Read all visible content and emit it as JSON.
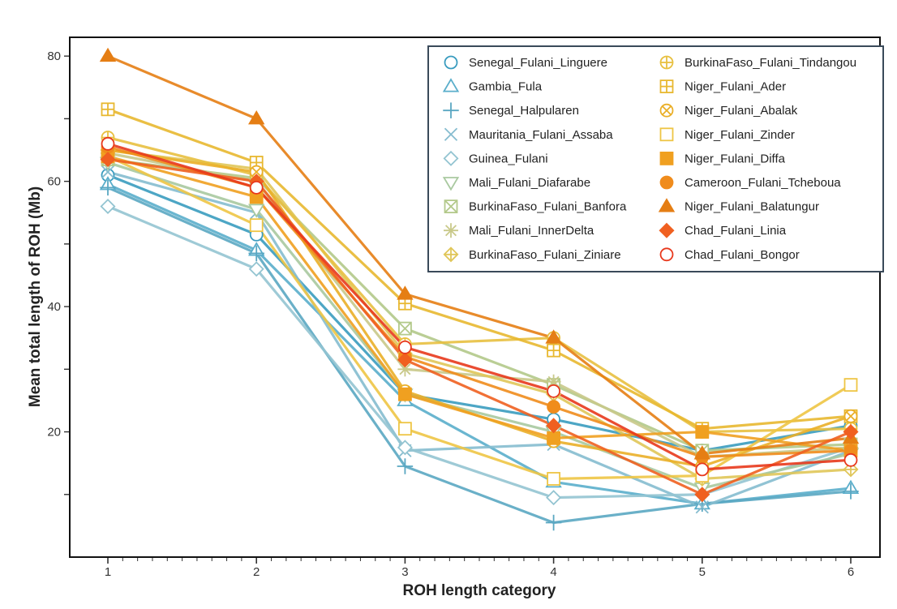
{
  "chart_data": {
    "type": "line",
    "title": "",
    "xlabel": "ROH length category",
    "ylabel": "Mean total length of ROH (Mb)",
    "x": [
      1,
      2,
      3,
      4,
      5,
      6
    ],
    "x_tick_labels": [
      "1",
      "2",
      "3",
      "4",
      "5",
      "6"
    ],
    "xlim": [
      1,
      6
    ],
    "ylim": [
      0,
      83
    ],
    "y_ticks": [
      20,
      40,
      60,
      80
    ],
    "y_tick_labels": [
      "20",
      "40",
      "60",
      "80"
    ],
    "grid": false,
    "legend_position": "top-right",
    "series": [
      {
        "name": "Senegal_Fulani_Linguere",
        "marker": "circle",
        "color": "#3a9cbf",
        "values": [
          61,
          51.5,
          26,
          22,
          17,
          21
        ]
      },
      {
        "name": "Gambia_Fula",
        "marker": "triangle-up-open",
        "color": "#5aaecb",
        "values": [
          59.5,
          49,
          25,
          12,
          8.5,
          11
        ]
      },
      {
        "name": "Senegal_Halpularen",
        "marker": "plus",
        "color": "#5aa7c2",
        "values": [
          59,
          48.5,
          14.5,
          5.5,
          8.5,
          10.5
        ]
      },
      {
        "name": "Mauritania_Fulani_Assaba",
        "marker": "x",
        "color": "#85bccf",
        "values": [
          61.5,
          55,
          17,
          18,
          8,
          17
        ]
      },
      {
        "name": "Guinea_Fulani",
        "marker": "diamond-open",
        "color": "#93c4d1",
        "values": [
          56,
          46,
          17.5,
          9.5,
          10,
          17.5
        ]
      },
      {
        "name": "Mali_Fulani_Diafarabe",
        "marker": "triangle-down-open",
        "color": "#a9c9a0",
        "values": [
          63,
          55.5,
          26,
          20,
          11,
          16.5
        ]
      },
      {
        "name": "BurkinaFaso_Fulani_Banfora",
        "marker": "square-x",
        "color": "#b3c98a",
        "values": [
          63.5,
          60.5,
          36.5,
          27.5,
          17,
          18
        ]
      },
      {
        "name": "Mali_Fulani_InnerDelta",
        "marker": "asterisk",
        "color": "#c9c98a",
        "values": [
          64.5,
          60,
          30,
          28,
          16,
          17.5
        ]
      },
      {
        "name": "BurkinaFaso_Fulani_Ziniare",
        "marker": "diamond-plus",
        "color": "#e0c659",
        "values": [
          65,
          62,
          32.5,
          26,
          12.5,
          14
        ]
      },
      {
        "name": "BurkinaFaso_Fulani_Tindangou",
        "marker": "circle-plus",
        "color": "#e8c040",
        "values": [
          67,
          61,
          34,
          35,
          20,
          20.5
        ]
      },
      {
        "name": "Niger_Fulani_Ader",
        "marker": "square-plus",
        "color": "#e8b830",
        "values": [
          71.5,
          63,
          40.5,
          33,
          20.5,
          22.5
        ]
      },
      {
        "name": "Niger_Fulani_Abalak",
        "marker": "circle-x",
        "color": "#eaaf28",
        "values": [
          65,
          61.5,
          26.5,
          18.5,
          14.5,
          22.5
        ]
      },
      {
        "name": "Niger_Fulani_Zinder",
        "marker": "square-open",
        "color": "#eec545",
        "values": [
          64,
          53,
          20.5,
          12.5,
          13,
          27.5
        ]
      },
      {
        "name": "Niger_Fulani_Diffa",
        "marker": "square-filled",
        "color": "#f0a020",
        "values": [
          64,
          57.5,
          26,
          19,
          20,
          17
        ]
      },
      {
        "name": "Cameroon_Fulani_Tcheboua",
        "marker": "circle-filled",
        "color": "#f08c1c",
        "values": [
          65.5,
          59,
          32,
          24,
          16,
          17
        ]
      },
      {
        "name": "Niger_Fulani_Balatungur",
        "marker": "triangle-up-filled",
        "color": "#e57e14",
        "values": [
          80,
          70,
          42,
          35,
          16.5,
          19
        ]
      },
      {
        "name": "Chad_Fulani_Linia",
        "marker": "diamond-filled",
        "color": "#f06020",
        "values": [
          63.5,
          60,
          31.5,
          21,
          10,
          20
        ]
      },
      {
        "name": "Chad_Fulani_Bongor",
        "marker": "circle-open-red",
        "color": "#e8381c",
        "values": [
          66,
          59,
          33.5,
          26.5,
          14,
          15.5
        ]
      }
    ]
  }
}
